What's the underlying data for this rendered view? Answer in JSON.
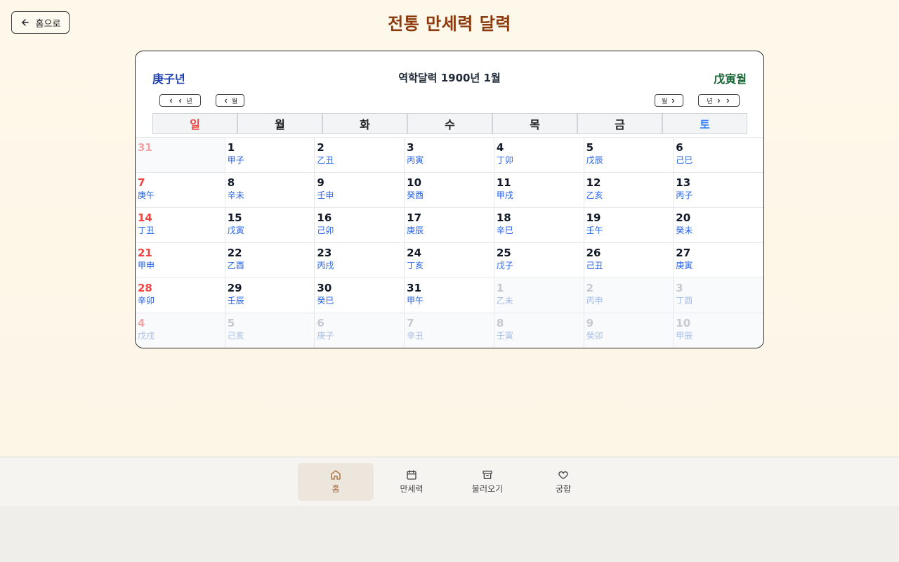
{
  "header": {
    "back_label": "홈으로",
    "title": "전통 만세력 달력"
  },
  "calendar": {
    "year_ganzhi": "庚子년",
    "month_ganzhi": "戊寅월",
    "title": "역학달력 1900년 1월",
    "nav": {
      "prev_year": "년",
      "prev_month": "월",
      "next_month": "월",
      "next_year": "년"
    },
    "weekdays": [
      "일",
      "월",
      "화",
      "수",
      "목",
      "금",
      "토"
    ],
    "weeks": [
      [
        {
          "d": "31",
          "g": "",
          "other": true
        },
        {
          "d": "1",
          "g": "甲子"
        },
        {
          "d": "2",
          "g": "乙丑"
        },
        {
          "d": "3",
          "g": "丙寅"
        },
        {
          "d": "4",
          "g": "丁卯"
        },
        {
          "d": "5",
          "g": "戊辰"
        },
        {
          "d": "6",
          "g": "己巳"
        }
      ],
      [
        {
          "d": "7",
          "g": "庚午"
        },
        {
          "d": "8",
          "g": "辛未"
        },
        {
          "d": "9",
          "g": "壬申"
        },
        {
          "d": "10",
          "g": "癸酉"
        },
        {
          "d": "11",
          "g": "甲戌"
        },
        {
          "d": "12",
          "g": "乙亥"
        },
        {
          "d": "13",
          "g": "丙子"
        }
      ],
      [
        {
          "d": "14",
          "g": "丁丑"
        },
        {
          "d": "15",
          "g": "戊寅"
        },
        {
          "d": "16",
          "g": "己卯"
        },
        {
          "d": "17",
          "g": "庚辰"
        },
        {
          "d": "18",
          "g": "辛巳"
        },
        {
          "d": "19",
          "g": "壬午"
        },
        {
          "d": "20",
          "g": "癸未"
        }
      ],
      [
        {
          "d": "21",
          "g": "甲申"
        },
        {
          "d": "22",
          "g": "乙酉"
        },
        {
          "d": "23",
          "g": "丙戌"
        },
        {
          "d": "24",
          "g": "丁亥"
        },
        {
          "d": "25",
          "g": "戊子"
        },
        {
          "d": "26",
          "g": "己丑"
        },
        {
          "d": "27",
          "g": "庚寅"
        }
      ],
      [
        {
          "d": "28",
          "g": "辛卯"
        },
        {
          "d": "29",
          "g": "壬辰"
        },
        {
          "d": "30",
          "g": "癸巳"
        },
        {
          "d": "31",
          "g": "甲午"
        },
        {
          "d": "1",
          "g": "乙未",
          "other": true
        },
        {
          "d": "2",
          "g": "丙申",
          "other": true
        },
        {
          "d": "3",
          "g": "丁酉",
          "other": true
        }
      ],
      [
        {
          "d": "4",
          "g": "戊戌",
          "other": true
        },
        {
          "d": "5",
          "g": "己亥",
          "other": true
        },
        {
          "d": "6",
          "g": "庚子",
          "other": true
        },
        {
          "d": "7",
          "g": "辛丑",
          "other": true
        },
        {
          "d": "8",
          "g": "壬寅",
          "other": true
        },
        {
          "d": "9",
          "g": "癸卯",
          "other": true
        },
        {
          "d": "10",
          "g": "甲辰",
          "other": true
        }
      ]
    ]
  },
  "bottom_nav": {
    "items": [
      {
        "label": "홈",
        "icon": "home-icon",
        "active": true
      },
      {
        "label": "만세력",
        "icon": "calendar-icon"
      },
      {
        "label": "불러오기",
        "icon": "archive-icon"
      },
      {
        "label": "궁합",
        "icon": "heart-icon"
      }
    ]
  },
  "colors": {
    "title": "#8b3a0e",
    "sunday": "#ef4444",
    "saturday": "#3b82f6",
    "ganzhi": "#2563eb",
    "month_ganzhi": "#166534",
    "year_ganzhi": "#1e40af",
    "nav_active": "#a56a3c"
  }
}
